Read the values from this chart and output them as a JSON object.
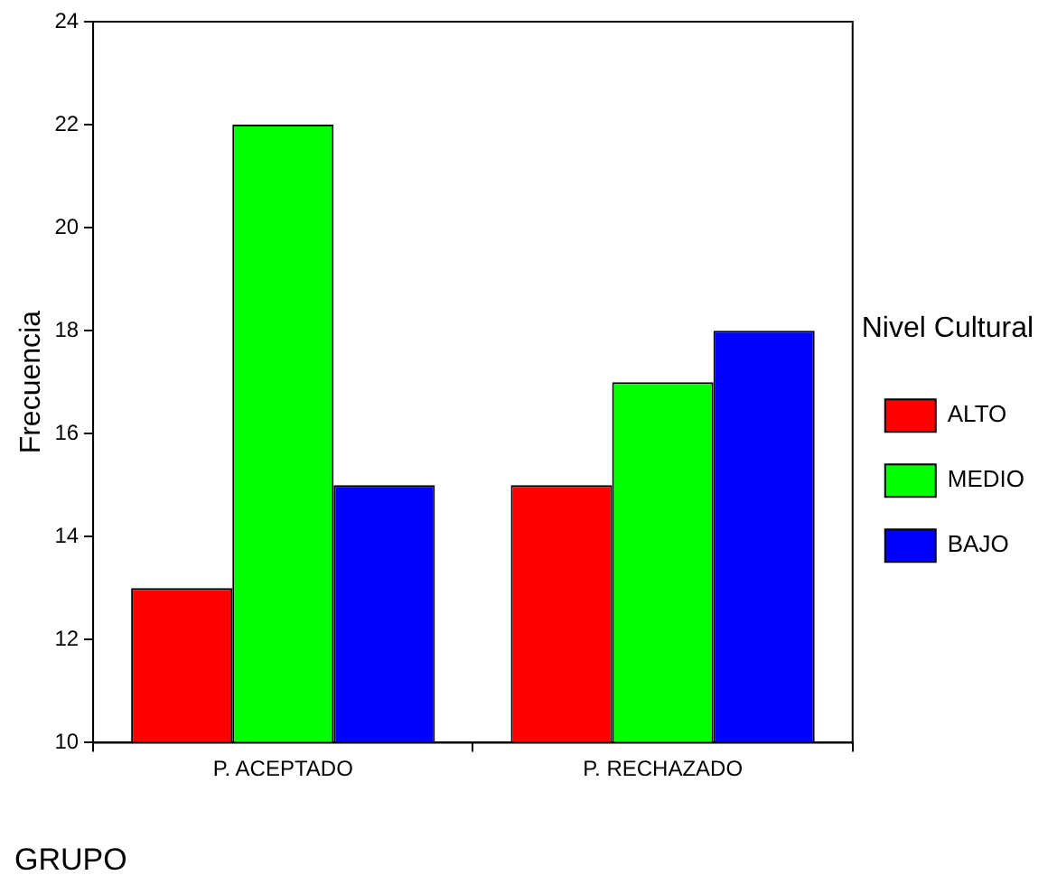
{
  "chart_data": {
    "type": "bar",
    "xlabel": "GRUPO",
    "ylabel": "Frecuencia",
    "legend_title": "Nivel Cultural",
    "categories": [
      "P. ACEPTADO",
      "P. RECHAZADO"
    ],
    "series": [
      {
        "name": "ALTO",
        "color": "#ff0000",
        "values": [
          13,
          15
        ]
      },
      {
        "name": "MEDIO",
        "color": "#00ff00",
        "values": [
          22,
          17
        ]
      },
      {
        "name": "BAJO",
        "color": "#0000ff",
        "values": [
          15,
          18
        ]
      }
    ],
    "ylim": [
      10,
      24
    ],
    "yticks": [
      10,
      12,
      14,
      16,
      18,
      20,
      22,
      24
    ],
    "grid": false,
    "legend": "right"
  }
}
